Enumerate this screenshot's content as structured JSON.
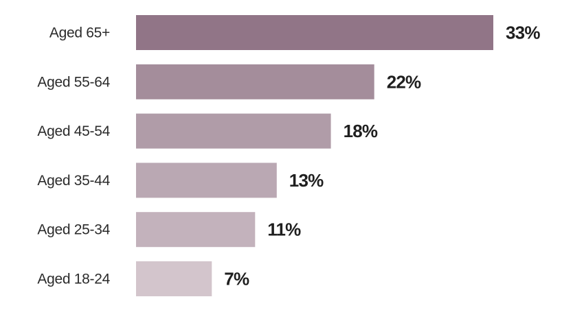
{
  "chart_data": {
    "type": "bar",
    "orientation": "horizontal",
    "categories": [
      "Aged 65+",
      "Aged 55-64",
      "Aged 45-54",
      "Aged 35-44",
      "Aged 25-34",
      "Aged 18-24"
    ],
    "values": [
      33,
      22,
      18,
      13,
      11,
      7
    ],
    "value_labels": [
      "33%",
      "22%",
      "18%",
      "13%",
      "11%",
      "7%"
    ],
    "unit": "%",
    "bar_colors": [
      "#917587",
      "#a48d9b",
      "#b09ca8",
      "#baa8b3",
      "#c3b2bc",
      "#d3c5cc"
    ],
    "xlim": [
      0,
      33
    ],
    "grid": false,
    "legend": "none"
  }
}
